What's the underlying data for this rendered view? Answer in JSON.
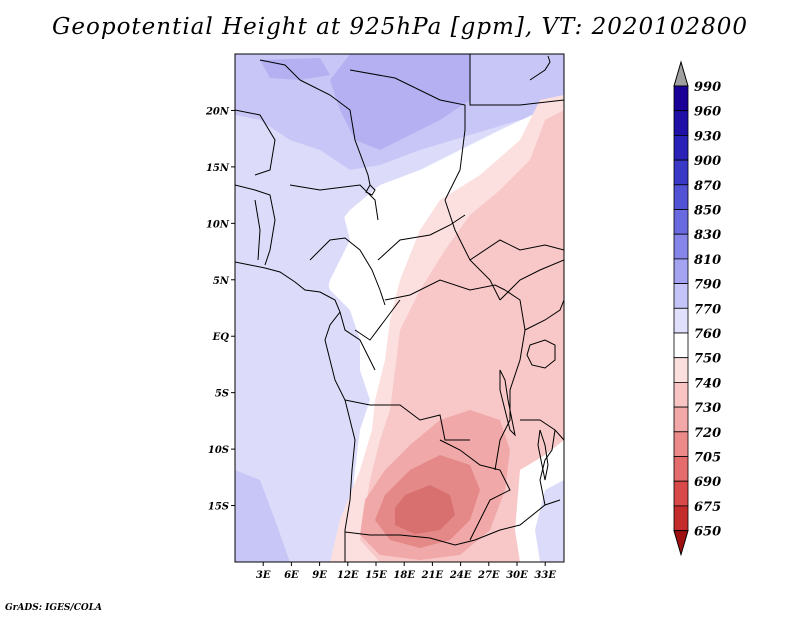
{
  "title": "Geopotential Height at 925hPa [gpm], VT: 2020102800",
  "credit": "GrADS: IGES/COLA",
  "map": {
    "lon_range": [
      0,
      35
    ],
    "lat_range": [
      -20,
      25
    ],
    "lat_ticks": [
      {
        "value": 20,
        "label": "20N"
      },
      {
        "value": 15,
        "label": "15N"
      },
      {
        "value": 10,
        "label": "10N"
      },
      {
        "value": 5,
        "label": "5N"
      },
      {
        "value": 0,
        "label": "EQ"
      },
      {
        "value": -5,
        "label": "5S"
      },
      {
        "value": -10,
        "label": "10S"
      },
      {
        "value": -15,
        "label": "15S"
      }
    ],
    "lon_ticks": [
      {
        "value": 3,
        "label": "3E"
      },
      {
        "value": 6,
        "label": "6E"
      },
      {
        "value": 9,
        "label": "9E"
      },
      {
        "value": 12,
        "label": "12E"
      },
      {
        "value": 15,
        "label": "15E"
      },
      {
        "value": 18,
        "label": "18E"
      },
      {
        "value": 21,
        "label": "21E"
      },
      {
        "value": 24,
        "label": "24E"
      },
      {
        "value": 27,
        "label": "27E"
      },
      {
        "value": 30,
        "label": "30E"
      },
      {
        "value": 33,
        "label": "33E"
      }
    ]
  },
  "colorbar": {
    "levels": [
      {
        "label": "990",
        "color": "#1a0096"
      },
      {
        "label": "960",
        "color": "#2010a8"
      },
      {
        "label": "930",
        "color": "#2a22b8"
      },
      {
        "label": "900",
        "color": "#3a38c6"
      },
      {
        "label": "870",
        "color": "#5252d4"
      },
      {
        "label": "850",
        "color": "#6a6ae0"
      },
      {
        "label": "830",
        "color": "#8686ea"
      },
      {
        "label": "810",
        "color": "#a4a4f2"
      },
      {
        "label": "790",
        "color": "#c4c4f8"
      },
      {
        "label": "770",
        "color": "#e0e0fc"
      },
      {
        "label": "760",
        "color": "#ffffff"
      },
      {
        "label": "750",
        "color": "#fce0e0"
      },
      {
        "label": "740",
        "color": "#f8c4c4"
      },
      {
        "label": "730",
        "color": "#f2a8a8"
      },
      {
        "label": "720",
        "color": "#ec8a8a"
      },
      {
        "label": "705",
        "color": "#e46c6c"
      },
      {
        "label": "690",
        "color": "#d84a4a"
      },
      {
        "label": "675",
        "color": "#c42c2c"
      },
      {
        "label": "650",
        "color": "#ae1a1a"
      }
    ],
    "top_arrow_color": "#a0a0a0",
    "bottom_arrow_color": "#a01010"
  },
  "field_colors": {
    "purple_dark": "#b4b0f2",
    "purple": "#c8c6f6",
    "lavender": "#dcdcfa",
    "white": "#ffffff",
    "pink_light": "#fce0e0",
    "pink": "#f8c8c8",
    "salmon": "#f0a8a8",
    "red_light": "#e48888",
    "red": "#d87070"
  }
}
